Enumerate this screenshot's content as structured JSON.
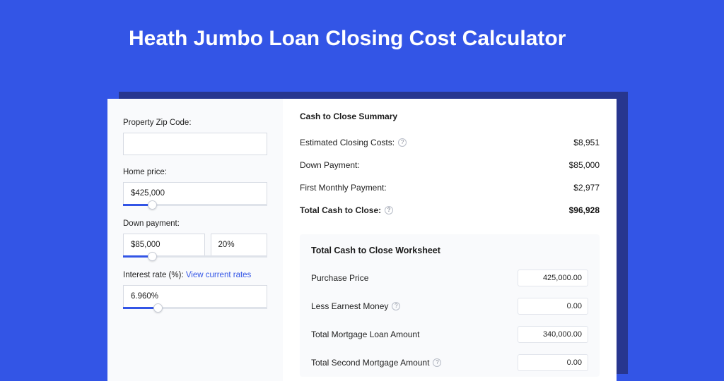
{
  "colors": {
    "page_bg": "#3355e6",
    "shadow_bg": "#27368f",
    "card_bg": "#ffffff",
    "sidebar_bg": "#f9fafc",
    "worksheet_bg": "#f9fafc",
    "input_border": "#d7dbe3",
    "slider_track": "#dfe3ea",
    "slider_fill": "#3355e6",
    "link": "#3355e6",
    "text": "#1a1a1a"
  },
  "title": "Heath Jumbo Loan Closing Cost Calculator",
  "sidebar": {
    "zip": {
      "label": "Property Zip Code:",
      "value": ""
    },
    "home_price": {
      "label": "Home price:",
      "value": "$425,000",
      "slider_percent": 20
    },
    "down_payment": {
      "label": "Down payment:",
      "value": "$85,000",
      "percent_value": "20%",
      "slider_percent": 20
    },
    "interest_rate": {
      "label_prefix": "Interest rate (%): ",
      "link_text": "View current rates",
      "value": "6.960%",
      "slider_percent": 24
    }
  },
  "summary": {
    "title": "Cash to Close Summary",
    "rows": [
      {
        "label": "Estimated Closing Costs:",
        "value": "$8,951",
        "help": true
      },
      {
        "label": "Down Payment:",
        "value": "$85,000",
        "help": false
      },
      {
        "label": "First Monthly Payment:",
        "value": "$2,977",
        "help": false
      }
    ],
    "total": {
      "label": "Total Cash to Close:",
      "value": "$96,928",
      "help": true
    }
  },
  "worksheet": {
    "title": "Total Cash to Close Worksheet",
    "rows": [
      {
        "label": "Purchase Price",
        "value": "425,000.00",
        "help": false
      },
      {
        "label": "Less Earnest Money",
        "value": "0.00",
        "help": true
      },
      {
        "label": "Total Mortgage Loan Amount",
        "value": "340,000.00",
        "help": false
      },
      {
        "label": "Total Second Mortgage Amount",
        "value": "0.00",
        "help": true
      }
    ]
  }
}
